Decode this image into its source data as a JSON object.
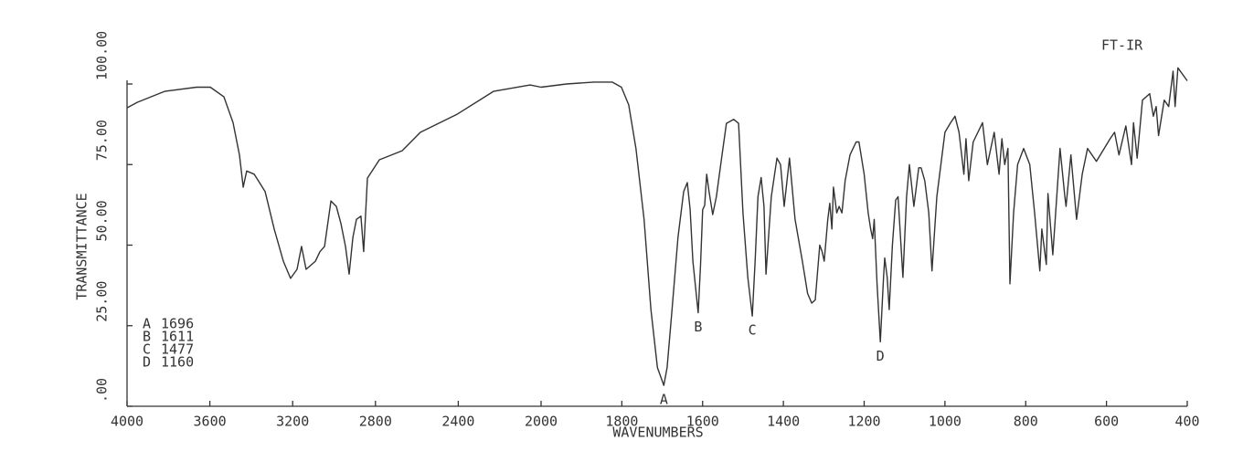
{
  "chart_data": {
    "type": "line",
    "title": "FT-IR",
    "xlabel": "WAVENUMBERS",
    "ylabel": "TRANSMITTANCE",
    "xlim": [
      4000,
      400
    ],
    "xbreak": 2000,
    "xticks": [
      4000,
      3600,
      3200,
      2800,
      2400,
      2000,
      1800,
      1600,
      1400,
      1200,
      1000,
      800,
      600,
      400
    ],
    "ylim": [
      0,
      100
    ],
    "yticks": [
      {
        "value": 0,
        "label": ".00"
      },
      {
        "value": 25,
        "label": "25.00"
      },
      {
        "value": 50,
        "label": "50.00"
      },
      {
        "value": 75,
        "label": "75.00"
      },
      {
        "value": 100,
        "label": "100.00"
      }
    ],
    "color": "#333333",
    "x": [
      4000,
      3951,
      3819,
      3664,
      3598,
      3532,
      3488,
      3457,
      3439,
      3422,
      3386,
      3333,
      3289,
      3245,
      3210,
      3179,
      3157,
      3135,
      3090,
      3068,
      3046,
      3015,
      2989,
      2967,
      2945,
      2927,
      2909,
      2892,
      2870,
      2857,
      2839,
      2781,
      2671,
      2583,
      2406,
      2230,
      2053,
      2000,
      1937,
      1869,
      1824,
      1801,
      1783,
      1765,
      1745,
      1728,
      1712,
      1696,
      1688,
      1676,
      1661,
      1647,
      1638,
      1631,
      1624,
      1611,
      1605,
      1600,
      1595,
      1590,
      1584,
      1575,
      1566,
      1552,
      1541,
      1523,
      1511,
      1500,
      1488,
      1477,
      1470,
      1463,
      1455,
      1448,
      1443,
      1430,
      1416,
      1407,
      1398,
      1385,
      1371,
      1353,
      1340,
      1330,
      1321,
      1310,
      1304,
      1299,
      1290,
      1285,
      1280,
      1276,
      1268,
      1262,
      1255,
      1247,
      1235,
      1220,
      1213,
      1200,
      1190,
      1184,
      1179,
      1175,
      1168,
      1160,
      1152,
      1149,
      1143,
      1138,
      1130,
      1122,
      1116,
      1104,
      1095,
      1088,
      1077,
      1065,
      1059,
      1050,
      1040,
      1032,
      1020,
      1000,
      986,
      975,
      965,
      953,
      948,
      941,
      930,
      907,
      895,
      878,
      866,
      859,
      852,
      844,
      839,
      830,
      820,
      805,
      790,
      778,
      765,
      760,
      749,
      745,
      733,
      715,
      703,
      700,
      688,
      674,
      660,
      647,
      625,
      591,
      580,
      569,
      552,
      538,
      533,
      524,
      511,
      493,
      484,
      477,
      471,
      457,
      446,
      435,
      430,
      423,
      400
    ],
    "values": [
      92.6,
      94.3,
      97.7,
      99,
      99,
      96,
      88,
      78,
      68,
      73,
      72,
      66.6,
      55,
      45,
      39.7,
      42.5,
      49.6,
      42.5,
      45,
      48,
      49.6,
      63.7,
      62,
      56.7,
      49.6,
      41,
      52.4,
      58,
      59,
      48,
      70.8,
      76.5,
      79.3,
      85,
      90.6,
      97.7,
      99.7,
      99,
      100,
      100.6,
      100.6,
      99,
      93.5,
      80,
      58,
      30,
      12,
      6.5,
      12,
      29.7,
      52.4,
      66.6,
      69.4,
      61,
      45,
      29,
      44,
      61,
      62.3,
      72,
      66.6,
      59.5,
      65,
      78,
      87.8,
      89,
      87.8,
      60,
      40,
      28,
      45,
      65,
      71,
      62,
      41,
      65,
      77,
      75,
      62,
      77,
      58,
      45,
      35,
      32,
      33,
      50,
      48,
      45,
      58,
      63,
      55,
      68,
      60,
      62,
      60,
      70,
      78,
      82,
      82,
      72,
      60,
      55,
      52,
      58,
      38,
      20,
      40,
      46,
      40,
      30,
      50,
      64,
      65,
      40,
      65,
      75,
      62,
      74,
      74,
      70,
      60,
      42,
      65,
      85,
      88,
      90,
      85,
      72,
      83,
      70,
      82,
      88,
      75,
      85,
      72,
      83,
      75,
      80,
      38,
      60,
      75,
      80,
      75,
      60,
      42,
      55,
      44,
      66,
      47,
      80,
      65,
      62,
      78,
      58,
      72,
      80,
      76,
      83,
      85,
      78,
      87,
      75,
      88,
      77,
      95,
      97,
      90,
      93,
      84,
      95,
      93,
      104,
      93,
      105,
      101
    ],
    "peaks": [
      {
        "label": "A",
        "wavenumber": 1696
      },
      {
        "label": "B",
        "wavenumber": 1611
      },
      {
        "label": "C",
        "wavenumber": 1477
      },
      {
        "label": "D",
        "wavenumber": 1160
      }
    ]
  }
}
